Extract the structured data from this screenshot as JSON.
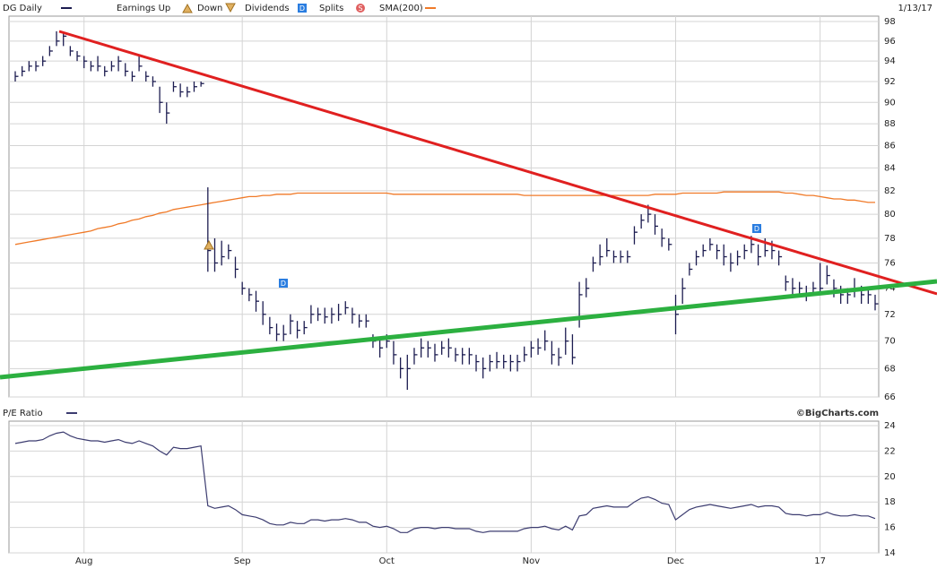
{
  "chart_data": [
    {
      "type": "ohlc",
      "name": "DG Daily",
      "date": "1/13/17",
      "color": "#1c1c50",
      "legend": {
        "earnings_up": "Earnings Up",
        "earnings_down": "Down",
        "dividends": "Dividends",
        "splits": "Splits",
        "dividend_icon": "D",
        "split_icon": "S"
      },
      "high": [
        93,
        93.5,
        94,
        94,
        94.5,
        95.5,
        97,
        96.8,
        95.5,
        95,
        94.5,
        94,
        94.5,
        93.5,
        94,
        94.5,
        93.8,
        93,
        94.5,
        93,
        92.5,
        91.5,
        90,
        92,
        91.8,
        91.5,
        92,
        92,
        82.3,
        78,
        77.8,
        77.5,
        76.5,
        74.5,
        74,
        73.8,
        73,
        71.8,
        71.3,
        71.2,
        72,
        71.5,
        71.5,
        72.7,
        72.5,
        72.5,
        72.5,
        72.8,
        73,
        72.5,
        72,
        72,
        70.5,
        70.3,
        70.5,
        70,
        68.8,
        69,
        69.5,
        70.2,
        70,
        69.8,
        70,
        70.2,
        69.5,
        69.5,
        69.5,
        69,
        68.8,
        69,
        69.2,
        69,
        69,
        69,
        69.6,
        70,
        70.2,
        70.8,
        70,
        69.5,
        71,
        70.5,
        74.5,
        74.8,
        76.5,
        77.5,
        78,
        77,
        77,
        77,
        79,
        80,
        80.8,
        80,
        78.8,
        78,
        73.5,
        74.8,
        76,
        77,
        77.5,
        78,
        77.5,
        77.5,
        76.8,
        77,
        77.5,
        78.2,
        77.5,
        78,
        77.8,
        77,
        75,
        74.8,
        74.5,
        74.2,
        74.5,
        76,
        75.8,
        74.7,
        74.2,
        74,
        74.8,
        74.2,
        74,
        73.5
      ],
      "low": [
        92,
        92.5,
        93,
        93,
        93.5,
        94.5,
        95.5,
        95.5,
        94.5,
        94,
        93.3,
        93,
        93,
        92.5,
        93,
        93,
        92.5,
        92,
        93,
        92,
        91.5,
        89,
        88,
        91,
        90.5,
        90.5,
        91,
        91.5,
        75.3,
        75.3,
        75.8,
        76.3,
        74.8,
        73.5,
        73,
        72.2,
        71.2,
        70.5,
        70,
        70,
        70.5,
        70.2,
        70.5,
        71.3,
        71.5,
        71.3,
        71.3,
        71.5,
        72,
        71.3,
        71,
        71,
        69.5,
        68.8,
        69.5,
        68.3,
        67.3,
        66.5,
        68.3,
        68.8,
        68.8,
        68.5,
        69,
        68.8,
        68.5,
        68.3,
        68.3,
        67.8,
        67.3,
        67.8,
        68,
        68,
        67.8,
        67.8,
        68.5,
        68.8,
        69,
        69.3,
        68.3,
        68.2,
        69,
        68.3,
        71,
        73.3,
        75.3,
        75.8,
        76.5,
        76,
        76,
        76,
        77.5,
        78.8,
        79.3,
        78.3,
        77.3,
        77,
        70.5,
        72.8,
        75,
        75.8,
        76.5,
        77,
        76.3,
        75.8,
        75.3,
        75.8,
        76.3,
        76.8,
        75.8,
        76.5,
        76.3,
        75.8,
        73.8,
        73.3,
        73.3,
        73,
        73.5,
        73.5,
        74.3,
        73.3,
        72.8,
        72.8,
        73.3,
        72.8,
        72.8,
        72.3
      ],
      "close": [
        92.5,
        93,
        93.5,
        93.5,
        94,
        95,
        96,
        96.5,
        95,
        94.5,
        94,
        93.5,
        93.5,
        93,
        93.5,
        94,
        93,
        92.5,
        93.5,
        92.5,
        92,
        90,
        89,
        91.5,
        91,
        91,
        91.5,
        91.8,
        77,
        76,
        76.5,
        77,
        75.5,
        74,
        73.5,
        73,
        72,
        71,
        70.5,
        70.5,
        71.5,
        70.8,
        71,
        72,
        72,
        71.8,
        72,
        72,
        72.5,
        72,
        71.5,
        71.5,
        70,
        69.5,
        70,
        69,
        68,
        68,
        69,
        69.5,
        69.5,
        69,
        69.5,
        69.5,
        69,
        69,
        69,
        68.5,
        68,
        68.5,
        68.5,
        68.5,
        68.5,
        68.5,
        69,
        69.5,
        69.5,
        70,
        69,
        68.8,
        70,
        68.8,
        73.5,
        74,
        76,
        76.5,
        77,
        76.5,
        76.5,
        76.5,
        78.5,
        79.5,
        80,
        79,
        78,
        77.5,
        72,
        74,
        75.5,
        76.5,
        77,
        77.5,
        77,
        76.5,
        76,
        76.5,
        77,
        77.5,
        76.5,
        77,
        77,
        76.5,
        74.5,
        74,
        74,
        73.5,
        74,
        74,
        75,
        74,
        73.5,
        73.5,
        74,
        73.5,
        73.5,
        72.8
      ],
      "sma": {
        "name": "SMA(200)",
        "color": "#f07a28",
        "values": [
          77.5,
          77.6,
          77.7,
          77.8,
          77.9,
          78.0,
          78.1,
          78.2,
          78.3,
          78.4,
          78.5,
          78.6,
          78.8,
          78.9,
          79.0,
          79.2,
          79.3,
          79.5,
          79.6,
          79.8,
          79.9,
          80.1,
          80.2,
          80.4,
          80.5,
          80.6,
          80.7,
          80.8,
          80.9,
          81.0,
          81.1,
          81.2,
          81.3,
          81.4,
          81.5,
          81.5,
          81.6,
          81.6,
          81.7,
          81.7,
          81.7,
          81.8,
          81.8,
          81.8,
          81.8,
          81.8,
          81.8,
          81.8,
          81.8,
          81.8,
          81.8,
          81.8,
          81.8,
          81.8,
          81.8,
          81.7,
          81.7,
          81.7,
          81.7,
          81.7,
          81.7,
          81.7,
          81.7,
          81.7,
          81.7,
          81.7,
          81.7,
          81.7,
          81.7,
          81.7,
          81.7,
          81.7,
          81.7,
          81.7,
          81.6,
          81.6,
          81.6,
          81.6,
          81.6,
          81.6,
          81.6,
          81.6,
          81.6,
          81.6,
          81.6,
          81.6,
          81.6,
          81.6,
          81.6,
          81.6,
          81.6,
          81.6,
          81.6,
          81.7,
          81.7,
          81.7,
          81.7,
          81.8,
          81.8,
          81.8,
          81.8,
          81.8,
          81.8,
          81.9,
          81.9,
          81.9,
          81.9,
          81.9,
          81.9,
          81.9,
          81.9,
          81.9,
          81.8,
          81.8,
          81.7,
          81.6,
          81.6,
          81.5,
          81.4,
          81.3,
          81.3,
          81.2,
          81.2,
          81.1,
          81.0,
          81.0
        ]
      },
      "log_scale": true,
      "grid": true,
      "ylim": [
        66,
        98
      ],
      "yticks": [
        66,
        68,
        70,
        72,
        74,
        76,
        78,
        80,
        82,
        84,
        86,
        88,
        90,
        92,
        94,
        96,
        98
      ]
    },
    {
      "type": "line",
      "credit": "©BigCharts.com",
      "grid": true,
      "categories": [
        null,
        null,
        null,
        null,
        null,
        null,
        null,
        null,
        null,
        null,
        "Aug",
        null,
        null,
        null,
        null,
        null,
        null,
        null,
        null,
        null,
        null,
        null,
        null,
        null,
        null,
        null,
        null,
        null,
        null,
        null,
        null,
        null,
        null,
        "Sep",
        null,
        null,
        null,
        null,
        null,
        null,
        null,
        null,
        null,
        null,
        null,
        null,
        null,
        null,
        null,
        null,
        null,
        null,
        null,
        null,
        "Oct",
        null,
        null,
        null,
        null,
        null,
        null,
        null,
        null,
        null,
        null,
        null,
        null,
        null,
        null,
        null,
        null,
        null,
        null,
        null,
        null,
        "Nov",
        null,
        null,
        null,
        null,
        null,
        null,
        null,
        null,
        null,
        null,
        null,
        null,
        null,
        null,
        null,
        null,
        null,
        null,
        null,
        null,
        "Dec",
        null,
        null,
        null,
        null,
        null,
        null,
        null,
        null,
        null,
        null,
        null,
        null,
        null,
        null,
        null,
        null,
        null,
        null,
        null,
        null,
        "17",
        null,
        null,
        null,
        null,
        null,
        null,
        null,
        null
      ],
      "series": [
        {
          "name": "P/E Ratio",
          "color": "#3c3c70",
          "values": [
            22.6,
            22.7,
            22.8,
            22.8,
            22.9,
            23.2,
            23.4,
            23.5,
            23.2,
            23.0,
            22.9,
            22.8,
            22.8,
            22.7,
            22.8,
            22.9,
            22.7,
            22.6,
            22.8,
            22.6,
            22.4,
            22.0,
            21.7,
            22.3,
            22.2,
            22.2,
            22.3,
            22.4,
            17.7,
            17.5,
            17.6,
            17.7,
            17.4,
            17.0,
            16.9,
            16.8,
            16.6,
            16.3,
            16.2,
            16.2,
            16.4,
            16.3,
            16.3,
            16.6,
            16.6,
            16.5,
            16.6,
            16.6,
            16.7,
            16.6,
            16.4,
            16.4,
            16.1,
            16.0,
            16.1,
            15.9,
            15.6,
            15.6,
            15.9,
            16.0,
            16.0,
            15.9,
            16.0,
            16.0,
            15.9,
            15.9,
            15.9,
            15.7,
            15.6,
            15.7,
            15.7,
            15.7,
            15.7,
            15.7,
            15.9,
            16.0,
            16.0,
            16.1,
            15.9,
            15.8,
            16.1,
            15.8,
            16.9,
            17.0,
            17.5,
            17.6,
            17.7,
            17.6,
            17.6,
            17.6,
            18.0,
            18.3,
            18.4,
            18.2,
            17.9,
            17.8,
            16.6,
            17.0,
            17.4,
            17.6,
            17.7,
            17.8,
            17.7,
            17.6,
            17.5,
            17.6,
            17.7,
            17.8,
            17.6,
            17.7,
            17.7,
            17.6,
            17.1,
            17.0,
            17.0,
            16.9,
            17.0,
            17.0,
            17.2,
            17.0,
            16.9,
            16.9,
            17.0,
            16.9,
            16.9,
            16.7
          ]
        }
      ],
      "ylim": [
        14,
        24
      ],
      "yticks": [
        14,
        16,
        18,
        20,
        22,
        24
      ]
    }
  ]
}
